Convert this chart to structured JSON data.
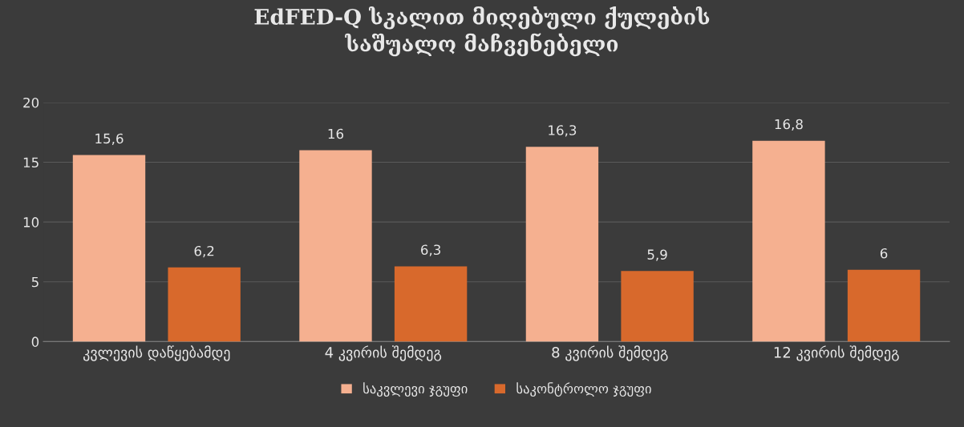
{
  "chart_data": {
    "type": "bar",
    "title": "EdFED-Q სკალით მიღებული ქულების\nსაშუალო მაჩვენებელი",
    "categories": [
      "კვლევის დაწყებამდე",
      "4 კვირის შემდეგ",
      "8 კვირის შემდეგ",
      "12 კვირის შემდეგ"
    ],
    "series": [
      {
        "name": "საკვლევი ჯგუფი",
        "color": "#f5b090",
        "values": [
          15.6,
          16,
          16.3,
          16.8
        ],
        "value_labels": [
          "15,6",
          "16",
          "16,3",
          "16,8"
        ]
      },
      {
        "name": "საკონტროლო ჯგუფი",
        "color": "#d8692c",
        "values": [
          6.2,
          6.3,
          5.9,
          6
        ],
        "value_labels": [
          "6,2",
          "6,3",
          "5,9",
          "6"
        ]
      }
    ],
    "ylim": [
      0,
      20
    ],
    "yticks": [
      0,
      5,
      10,
      15,
      20
    ],
    "grid": "y",
    "legend": "bottom"
  }
}
